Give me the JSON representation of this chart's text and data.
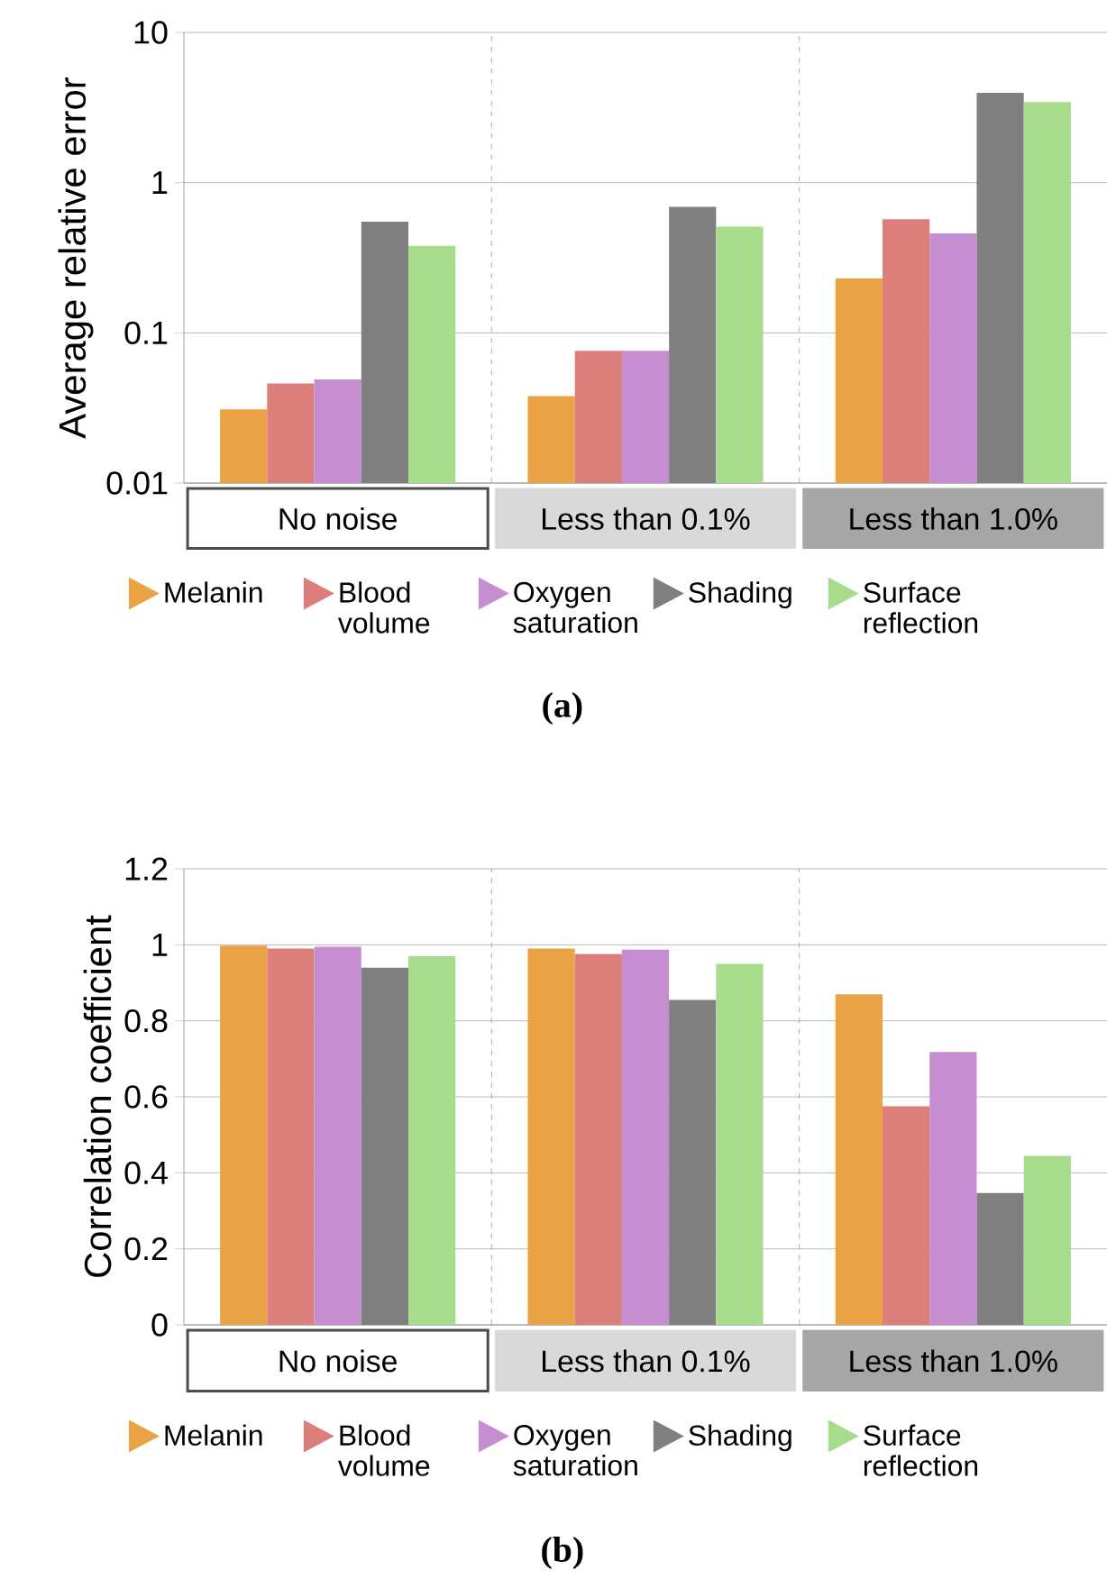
{
  "chart_data": [
    {
      "type": "bar",
      "ylabel": "Average relative error",
      "categories": [
        "No noise",
        "Less than 0.1%",
        "Less than 1.0%"
      ],
      "log": "y",
      "ylim": [
        0.01,
        10
      ],
      "yticks": [
        0.01,
        0.1,
        1,
        10
      ],
      "grid": true,
      "legend": "bottom",
      "annotations": [
        "(a)"
      ],
      "series": [
        {
          "name": "Melanin",
          "color": "#e9a244",
          "values": [
            0.031,
            0.038,
            0.23
          ]
        },
        {
          "name": "Blood volume",
          "color": "#dc7f7b",
          "values": [
            0.046,
            0.076,
            0.57
          ]
        },
        {
          "name": "Oxygen saturation",
          "color": "#c68dd0",
          "values": [
            0.049,
            0.076,
            0.46
          ]
        },
        {
          "name": "Shading",
          "color": "#7f7f7f",
          "values": [
            0.55,
            0.69,
            3.96
          ]
        },
        {
          "name": "Surface reflection",
          "color": "#a6dc8b",
          "values": [
            0.38,
            0.51,
            3.44
          ]
        }
      ]
    },
    {
      "type": "bar",
      "ylabel": "Correlation coefficient",
      "categories": [
        "No noise",
        "Less than 0.1%",
        "Less than 1.0%"
      ],
      "ylim": [
        0,
        1.2
      ],
      "yticks": [
        0,
        0.2,
        0.4,
        0.6,
        0.8,
        1,
        1.2
      ],
      "grid": true,
      "legend": "bottom",
      "annotations": [
        "(b)"
      ],
      "series": [
        {
          "name": "Melanin",
          "color": "#e9a244",
          "values": [
            0.998,
            0.99,
            0.87
          ]
        },
        {
          "name": "Blood volume",
          "color": "#dc7f7b",
          "values": [
            0.99,
            0.976,
            0.575
          ]
        },
        {
          "name": "Oxygen saturation",
          "color": "#c68dd0",
          "values": [
            0.995,
            0.987,
            0.718
          ]
        },
        {
          "name": "Shading",
          "color": "#7f7f7f",
          "values": [
            0.94,
            0.855,
            0.347
          ]
        },
        {
          "name": "Surface reflection",
          "color": "#a6dc8b",
          "values": [
            0.97,
            0.95,
            0.445
          ]
        }
      ]
    }
  ]
}
